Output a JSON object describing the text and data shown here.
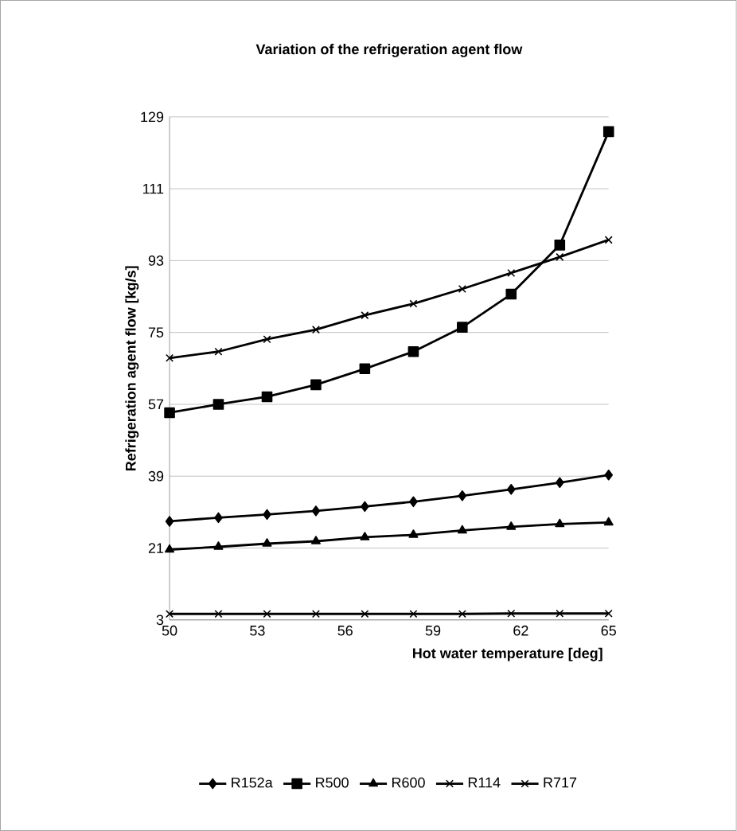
{
  "chart_data": {
    "type": "line",
    "title": "Variation of the refrigeration agent flow",
    "xlabel": "Hot water temperature [deg]",
    "ylabel": "Refrigeration agent flow [kg/s]",
    "x": [
      50,
      51.67,
      53.33,
      55,
      56.67,
      58.33,
      60,
      61.67,
      63.33,
      65
    ],
    "series": [
      {
        "name": "R152a",
        "color": "#000000",
        "marker": "diamond",
        "values": [
          27.7,
          28.6,
          29.4,
          30.3,
          31.4,
          32.6,
          34.1,
          35.7,
          37.4,
          39.3
        ]
      },
      {
        "name": "R500",
        "color": "#000000",
        "marker": "square",
        "values": [
          54.9,
          57.0,
          58.9,
          61.9,
          65.9,
          70.2,
          76.3,
          84.6,
          96.9,
          125.3
        ]
      },
      {
        "name": "R600",
        "color": "#000000",
        "marker": "triangle",
        "values": [
          20.6,
          21.3,
          22.1,
          22.7,
          23.7,
          24.3,
          25.4,
          26.3,
          27.0,
          27.4
        ]
      },
      {
        "name": "R114",
        "color": "#000000",
        "marker": "cross",
        "values": [
          68.6,
          70.2,
          73.3,
          75.7,
          79.3,
          82.2,
          85.9,
          89.9,
          93.9,
          98.2
        ]
      },
      {
        "name": "R717",
        "color": "#000000",
        "marker": "cross",
        "values": [
          4.5,
          4.5,
          4.5,
          4.5,
          4.5,
          4.5,
          4.5,
          4.6,
          4.6,
          4.6
        ]
      }
    ],
    "xlim": [
      50,
      65
    ],
    "xticks": [
      50,
      53,
      56,
      59,
      62,
      65
    ],
    "ylim": [
      3,
      129
    ],
    "yticks": [
      3,
      21,
      39,
      57,
      75,
      93,
      111,
      129
    ],
    "grid": "y",
    "legend": "bottom",
    "line_style": "solid"
  }
}
